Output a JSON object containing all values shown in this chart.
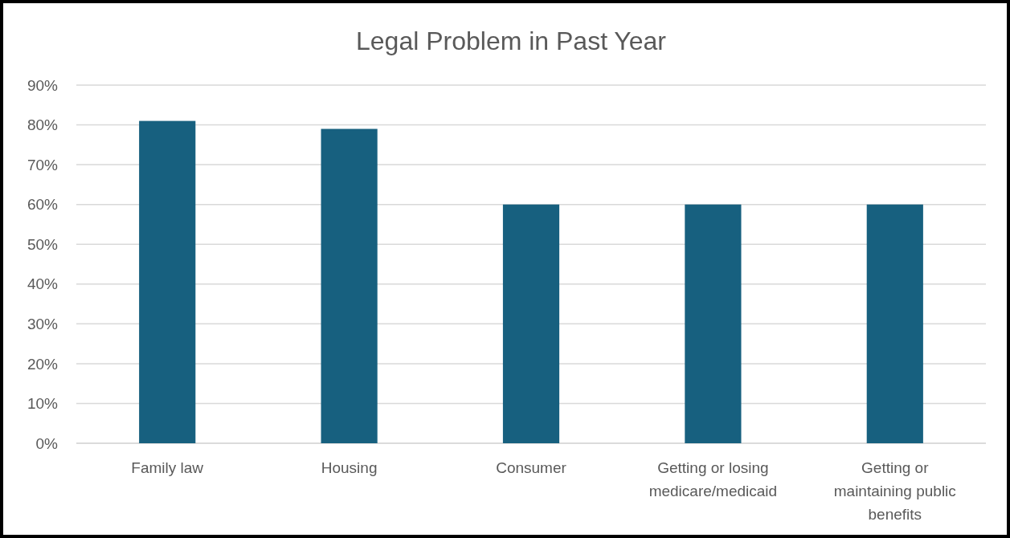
{
  "chart_data": {
    "type": "bar",
    "title": "Legal Problem in Past Year",
    "categories": [
      "Family law",
      "Housing",
      "Consumer",
      "Getting or losing medicare/medicaid",
      "Getting or maintaining public benefits"
    ],
    "values": [
      81,
      79,
      60,
      60,
      60
    ],
    "color": "#17607f",
    "ylim": [
      0,
      90
    ],
    "yticks": [
      {
        "value": 0,
        "label": "0%"
      },
      {
        "value": 10,
        "label": "10%"
      },
      {
        "value": 20,
        "label": "20%"
      },
      {
        "value": 30,
        "label": "30%"
      },
      {
        "value": 40,
        "label": "40%"
      },
      {
        "value": 50,
        "label": "50%"
      },
      {
        "value": 60,
        "label": "60%"
      },
      {
        "value": 70,
        "label": "70%"
      },
      {
        "value": 80,
        "label": "80%"
      },
      {
        "value": 90,
        "label": "90%"
      }
    ],
    "grid": "y"
  }
}
